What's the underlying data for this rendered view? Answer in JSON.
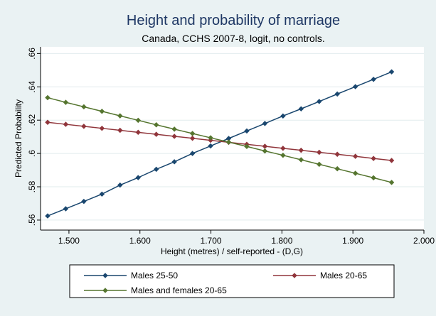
{
  "chart_data": {
    "type": "line",
    "title": "Height and probability of marriage",
    "subtitle": "Canada, CCHS 2007-8, logit, no controls.",
    "xlabel": "Height (metres) / self-reported - (D,G)",
    "ylabel": "Predicted Probability",
    "xlim": [
      1.46,
      2.0
    ],
    "ylim": [
      0.554,
      0.664
    ],
    "xticks": [
      1.5,
      1.6,
      1.7,
      1.8,
      1.9,
      2.0
    ],
    "xtick_labels": [
      "1.500",
      "1.600",
      "1.700",
      "1.800",
      "1.900",
      "2.000"
    ],
    "yticks": [
      0.56,
      0.58,
      0.6,
      0.62,
      0.64,
      0.66
    ],
    "ytick_labels": [
      ".56",
      ".58",
      ".6",
      ".62",
      ".64",
      ".66"
    ],
    "grid": "horizontal",
    "legend_position": "bottom",
    "x": [
      1.47,
      1.4955,
      1.521,
      1.5465,
      1.572,
      1.5975,
      1.623,
      1.6485,
      1.674,
      1.6995,
      1.725,
      1.7505,
      1.776,
      1.8015,
      1.827,
      1.8525,
      1.878,
      1.9035,
      1.929,
      1.9545
    ],
    "series": [
      {
        "name": "Males 25-50",
        "color": "#1a476f",
        "values": [
          0.5625,
          0.5668,
          0.5712,
          0.5756,
          0.581,
          0.5855,
          0.5905,
          0.595,
          0.6,
          0.6045,
          0.609,
          0.6135,
          0.618,
          0.6225,
          0.6268,
          0.6312,
          0.6357,
          0.6401,
          0.6445,
          0.649
        ]
      },
      {
        "name": "Males 20-65",
        "color": "#90353b",
        "values": [
          0.6187,
          0.6175,
          0.6163,
          0.6151,
          0.6139,
          0.6127,
          0.6115,
          0.6103,
          0.6091,
          0.6079,
          0.6067,
          0.6055,
          0.6043,
          0.6031,
          0.6019,
          0.6007,
          0.5995,
          0.5983,
          0.597,
          0.5958
        ]
      },
      {
        "name": "Males and females 20-65",
        "color": "#55752f",
        "values": [
          0.6335,
          0.6307,
          0.628,
          0.6253,
          0.6226,
          0.6199,
          0.6172,
          0.6146,
          0.612,
          0.6094,
          0.6068,
          0.6042,
          0.6015,
          0.5989,
          0.5962,
          0.5935,
          0.5908,
          0.5881,
          0.5854,
          0.5826
        ]
      }
    ]
  }
}
